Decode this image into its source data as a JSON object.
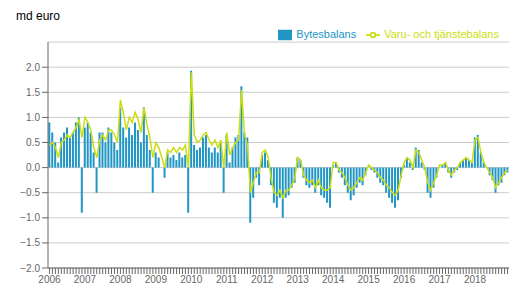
{
  "chart_data": {
    "type": "bar",
    "title": "md euro",
    "categories": [
      "2006",
      null,
      null,
      null,
      null,
      null,
      null,
      null,
      null,
      null,
      null,
      null,
      "2007",
      null,
      null,
      null,
      null,
      null,
      null,
      null,
      null,
      null,
      null,
      null,
      "2008",
      null,
      null,
      null,
      null,
      null,
      null,
      null,
      null,
      null,
      null,
      null,
      "2009",
      null,
      null,
      null,
      null,
      null,
      null,
      null,
      null,
      null,
      null,
      null,
      "2010",
      null,
      null,
      null,
      null,
      null,
      null,
      null,
      null,
      null,
      null,
      null,
      "2011",
      null,
      null,
      null,
      null,
      null,
      null,
      null,
      null,
      null,
      null,
      null,
      "2012",
      null,
      null,
      null,
      null,
      null,
      null,
      null,
      null,
      null,
      null,
      null,
      "2013",
      null,
      null,
      null,
      null,
      null,
      null,
      null,
      null,
      null,
      null,
      null,
      "2014",
      null,
      null,
      null,
      null,
      null,
      null,
      null,
      null,
      null,
      null,
      null,
      "2015",
      null,
      null,
      null,
      null,
      null,
      null,
      null,
      null,
      null,
      null,
      null,
      "2016",
      null,
      null,
      null,
      null,
      null,
      null,
      null,
      null,
      null,
      null,
      null,
      "2017",
      null,
      null,
      null,
      null,
      null,
      null,
      null,
      null,
      null,
      null,
      null,
      "2018",
      null,
      null,
      null,
      null,
      null,
      null,
      null,
      null,
      null,
      null,
      null
    ],
    "series": [
      {
        "name": "Bytesbalans",
        "type": "bar",
        "color": "#2196C4",
        "values": [
          0.9,
          0.7,
          0.5,
          0.1,
          0.6,
          0.7,
          0.8,
          0.6,
          0.7,
          0.9,
          1.0,
          -0.9,
          0.8,
          0.9,
          0.7,
          0.3,
          -0.5,
          0.7,
          0.7,
          0.5,
          0.8,
          0.7,
          0.5,
          0.35,
          1.2,
          0.8,
          0.6,
          0.8,
          0.65,
          0.9,
          0.75,
          0.5,
          1.2,
          0.65,
          0.35,
          -0.5,
          0.3,
          0.2,
          0.0,
          -0.2,
          0.3,
          0.2,
          0.25,
          0.15,
          0.3,
          0.2,
          0.25,
          -0.9,
          1.93,
          0.45,
          0.35,
          0.4,
          0.6,
          0.65,
          0.4,
          0.3,
          0.4,
          0.3,
          0.5,
          -0.5,
          0.65,
          0.1,
          0.4,
          0.6,
          0.65,
          1.62,
          0.7,
          0.6,
          -1.1,
          -0.6,
          -0.2,
          -0.35,
          0.25,
          0.3,
          0.15,
          -0.35,
          -0.7,
          -0.8,
          -0.6,
          -1.0,
          -0.6,
          -0.55,
          -0.4,
          -0.3,
          0.2,
          0.15,
          -0.2,
          -0.35,
          -0.4,
          -0.35,
          -0.5,
          -0.35,
          -0.55,
          -0.6,
          -0.7,
          -0.8,
          0.05,
          0.1,
          -0.1,
          -0.2,
          -0.35,
          -0.5,
          -0.65,
          -0.55,
          -0.4,
          -0.3,
          -0.35,
          -0.15,
          0.0,
          -0.05,
          -0.1,
          -0.2,
          -0.3,
          -0.35,
          -0.5,
          -0.6,
          -0.7,
          -0.8,
          -0.65,
          -0.2,
          0.05,
          0.2,
          0.1,
          -0.05,
          0.4,
          0.35,
          0.1,
          -0.05,
          -0.5,
          -0.6,
          -0.4,
          -0.2,
          0.0,
          0.05,
          0.1,
          -0.1,
          -0.2,
          -0.1,
          -0.05,
          0.1,
          0.15,
          0.2,
          0.15,
          0.1,
          0.6,
          0.65,
          0.3,
          0.1,
          0.0,
          -0.15,
          -0.25,
          -0.5,
          -0.35,
          -0.3,
          -0.15,
          -0.1
        ]
      },
      {
        "name": "Varu- och tjänstebalans",
        "type": "line",
        "color": "#CCDD11",
        "values": [
          0.45,
          0.5,
          0.4,
          0.2,
          0.5,
          0.55,
          0.65,
          0.6,
          0.7,
          0.8,
          0.95,
          0.6,
          1.0,
          0.9,
          0.75,
          0.4,
          0.2,
          0.55,
          0.65,
          0.55,
          0.75,
          0.75,
          0.65,
          0.5,
          1.35,
          1.1,
          0.75,
          1.0,
          0.9,
          1.1,
          0.95,
          0.7,
          1.2,
          0.85,
          0.6,
          0.2,
          0.5,
          0.4,
          0.2,
          0.0,
          0.35,
          0.3,
          0.4,
          0.3,
          0.4,
          0.35,
          0.45,
          0.0,
          1.9,
          0.65,
          0.5,
          0.55,
          0.65,
          0.7,
          0.55,
          0.45,
          0.55,
          0.4,
          0.55,
          0.0,
          0.7,
          0.25,
          0.4,
          0.5,
          0.55,
          1.55,
          0.65,
          0.45,
          -0.5,
          -0.3,
          -0.1,
          -0.1,
          0.3,
          0.35,
          0.2,
          -0.2,
          -0.5,
          -0.55,
          -0.45,
          -0.6,
          -0.45,
          -0.45,
          -0.35,
          -0.2,
          0.2,
          0.15,
          -0.15,
          -0.25,
          -0.3,
          -0.25,
          -0.4,
          -0.25,
          -0.4,
          -0.45,
          -0.45,
          -0.4,
          0.1,
          0.1,
          -0.05,
          -0.1,
          -0.2,
          -0.35,
          -0.45,
          -0.4,
          -0.3,
          -0.2,
          -0.25,
          -0.1,
          0.05,
          0.0,
          -0.05,
          -0.1,
          -0.2,
          -0.25,
          -0.35,
          -0.4,
          -0.5,
          -0.55,
          -0.45,
          -0.15,
          0.1,
          0.2,
          0.15,
          0.0,
          0.35,
          0.3,
          0.15,
          0.0,
          -0.3,
          -0.45,
          -0.3,
          -0.15,
          0.05,
          0.05,
          0.1,
          -0.05,
          -0.15,
          -0.05,
          0.0,
          0.1,
          0.15,
          0.2,
          0.15,
          0.1,
          0.55,
          0.6,
          0.3,
          0.1,
          0.0,
          -0.1,
          -0.2,
          -0.4,
          -0.3,
          -0.2,
          -0.1,
          -0.05
        ]
      }
    ],
    "ylim": [
      -2.0,
      2.5
    ],
    "yticks": [
      {
        "value": -2.0,
        "label": "−2.0"
      },
      {
        "value": -1.5,
        "label": "−1.5"
      },
      {
        "value": -1.0,
        "label": "−1.0"
      },
      {
        "value": -0.5,
        "label": "−0.5"
      },
      {
        "value": 0.0,
        "label": "0.0"
      },
      {
        "value": 0.5,
        "label": "0.5"
      },
      {
        "value": 1.0,
        "label": "1.0"
      },
      {
        "value": 1.5,
        "label": "1.5"
      },
      {
        "value": 2.0,
        "label": "2.0"
      }
    ],
    "grid": true,
    "legend": "upper right"
  }
}
